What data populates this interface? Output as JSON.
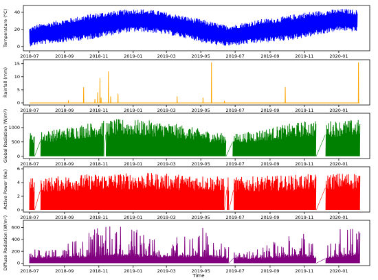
{
  "figure": {
    "xlabel": "Time",
    "x_tick_labels": [
      "2018-07",
      "2018-09",
      "2018-11",
      "2019-01",
      "2019-03",
      "2019-05",
      "2019-07",
      "2019-09",
      "2019-11",
      "2020-01"
    ]
  },
  "chart_data": [
    {
      "type": "line",
      "ylabel": "Temperature (°C)",
      "color": "#0000ff",
      "xlim": [
        "2018-06-20",
        "2020-02-25"
      ],
      "ylim": [
        -5,
        48
      ],
      "y_ticks": [
        0,
        20,
        40
      ],
      "series": [
        {
          "x": [
            "2018-07-01",
            "2018-07-15",
            "2018-08-01",
            "2018-08-15",
            "2018-09-01",
            "2018-09-15",
            "2018-10-01",
            "2018-10-15",
            "2018-11-01",
            "2018-11-15",
            "2018-12-01",
            "2018-12-15",
            "2019-01-01",
            "2019-01-15",
            "2019-02-01",
            "2019-02-15",
            "2019-03-01",
            "2019-03-15",
            "2019-04-01",
            "2019-04-15",
            "2019-05-01",
            "2019-05-15",
            "2019-06-01",
            "2019-06-15",
            "2019-07-01",
            "2019-07-15",
            "2019-08-01",
            "2019-08-15",
            "2019-09-01",
            "2019-09-15",
            "2019-10-01",
            "2019-10-15",
            "2019-11-01",
            "2019-11-15",
            "2019-12-01",
            "2019-12-15",
            "2020-01-01",
            "2020-01-15",
            "2020-02-01"
          ],
          "y_min": [
            0,
            2,
            3,
            4,
            5,
            6,
            7,
            8,
            10,
            12,
            14,
            16,
            17,
            17,
            16,
            15,
            14,
            12,
            10,
            8,
            5,
            3,
            1,
            0,
            1,
            2,
            3,
            4,
            5,
            6,
            7,
            8,
            10,
            12,
            14,
            16,
            18,
            18,
            17
          ],
          "y_max": [
            22,
            26,
            28,
            30,
            32,
            34,
            36,
            38,
            40,
            41,
            42,
            43,
            44,
            44,
            43,
            42,
            40,
            38,
            36,
            34,
            32,
            30,
            27,
            25,
            26,
            28,
            30,
            32,
            33,
            34,
            36,
            38,
            40,
            41,
            42,
            43,
            44,
            44,
            43
          ]
        }
      ]
    },
    {
      "type": "line",
      "ylabel": "Rainfall (mm)",
      "color": "#ffa500",
      "xlim": [
        "2018-06-20",
        "2020-02-25"
      ],
      "ylim": [
        -0.8,
        16.5
      ],
      "y_ticks": [
        0,
        5,
        10,
        15
      ],
      "baseline": 0,
      "series": [
        {
          "events": [
            {
              "x": "2018-09-08",
              "y": 1
            },
            {
              "x": "2018-10-05",
              "y": 6
            },
            {
              "x": "2018-10-25",
              "y": 1.5
            },
            {
              "x": "2018-10-30",
              "y": 4
            },
            {
              "x": "2018-11-03",
              "y": 9.5
            },
            {
              "x": "2018-11-05",
              "y": 2
            },
            {
              "x": "2018-11-18",
              "y": 12
            },
            {
              "x": "2018-11-22",
              "y": 2.5
            },
            {
              "x": "2018-12-05",
              "y": 3.5
            },
            {
              "x": "2019-03-20",
              "y": 2.5
            },
            {
              "x": "2019-05-05",
              "y": 2
            },
            {
              "x": "2019-05-20",
              "y": 15.5
            },
            {
              "x": "2019-06-12",
              "y": 0.8
            },
            {
              "x": "2019-09-28",
              "y": 6
            },
            {
              "x": "2020-02-05",
              "y": 15.5
            }
          ]
        }
      ]
    },
    {
      "type": "area",
      "ylabel": "Global Radiation (W/m²)",
      "color": "#008000",
      "xlim": [
        "2018-06-20",
        "2020-02-25"
      ],
      "ylim": [
        -80,
        1500
      ],
      "y_ticks": [
        0,
        500,
        1000
      ],
      "series": [
        {
          "x": [
            "2018-07-01",
            "2018-08-01",
            "2018-09-01",
            "2018-10-01",
            "2018-11-01",
            "2018-12-01",
            "2019-01-01",
            "2019-02-01",
            "2019-03-01",
            "2019-04-01",
            "2019-05-01",
            "2019-06-01",
            "2019-07-01",
            "2019-08-01",
            "2019-09-01",
            "2019-10-01",
            "2019-11-01",
            "2019-12-01",
            "2020-01-01",
            "2020-02-01"
          ],
          "y_max": [
            820,
            900,
            1000,
            1120,
            1230,
            1300,
            1280,
            1250,
            1180,
            1080,
            950,
            820,
            790,
            880,
            1000,
            1120,
            1230,
            1240,
            1250,
            1280
          ]
        }
      ],
      "gaps": [
        [
          "2018-07-10",
          "2018-07-20"
        ],
        [
          "2018-11-10",
          "2018-11-13"
        ],
        [
          "2019-06-15",
          "2019-06-26"
        ],
        [
          "2019-11-22",
          "2019-12-08"
        ]
      ]
    },
    {
      "type": "area",
      "ylabel": "Active Power (Kw)",
      "color": "#ff0000",
      "xlim": [
        "2018-06-20",
        "2020-02-25"
      ],
      "ylim": [
        -0.3,
        6.3
      ],
      "y_ticks": [
        0,
        2,
        4,
        6
      ],
      "series": [
        {
          "x": [
            "2018-07-01",
            "2018-08-01",
            "2018-09-01",
            "2018-10-01",
            "2018-11-01",
            "2018-12-01",
            "2019-01-01",
            "2019-02-01",
            "2019-03-01",
            "2019-04-01",
            "2019-05-01",
            "2019-06-01",
            "2019-07-01",
            "2019-08-01",
            "2019-09-01",
            "2019-10-01",
            "2019-11-01",
            "2019-12-01",
            "2020-01-01",
            "2020-02-01"
          ],
          "y_max": [
            4.7,
            4.8,
            5.0,
            5.2,
            5.3,
            5.4,
            5.4,
            5.4,
            5.3,
            5.2,
            5.1,
            4.9,
            4.8,
            4.9,
            5.0,
            5.1,
            5.2,
            5.3,
            5.4,
            5.5
          ]
        }
      ],
      "gaps": [
        [
          "2018-07-10",
          "2018-07-20"
        ],
        [
          "2019-06-12",
          "2019-06-16"
        ],
        [
          "2019-06-20",
          "2019-06-28"
        ],
        [
          "2019-11-22",
          "2019-12-08"
        ]
      ]
    },
    {
      "type": "area",
      "ylabel": "Diffuse Radiation (W/m²)",
      "color": "#800080",
      "xlim": [
        "2018-06-20",
        "2020-02-25"
      ],
      "ylim": [
        -40,
        720
      ],
      "y_ticks": [
        0,
        200,
        400,
        600
      ],
      "series": [
        {
          "x": [
            "2018-07-01",
            "2018-08-01",
            "2018-09-01",
            "2018-10-01",
            "2018-11-01",
            "2018-12-01",
            "2019-01-01",
            "2019-02-01",
            "2019-03-01",
            "2019-04-01",
            "2019-05-01",
            "2019-06-01",
            "2019-07-01",
            "2019-08-01",
            "2019-09-01",
            "2019-10-01",
            "2019-11-01",
            "2019-12-01",
            "2020-01-01",
            "2020-02-01"
          ],
          "y_base": [
            90,
            95,
            100,
            110,
            130,
            140,
            140,
            120,
            115,
            120,
            125,
            110,
            80,
            90,
            100,
            120,
            140,
            60,
            130,
            150
          ],
          "y_peak": [
            300,
            200,
            300,
            450,
            650,
            620,
            600,
            500,
            550,
            480,
            650,
            400,
            200,
            250,
            350,
            450,
            550,
            150,
            600,
            650
          ]
        }
      ],
      "gaps": [
        [
          "2019-06-20",
          "2019-06-28"
        ],
        [
          "2019-11-22",
          "2019-12-08"
        ]
      ]
    }
  ]
}
